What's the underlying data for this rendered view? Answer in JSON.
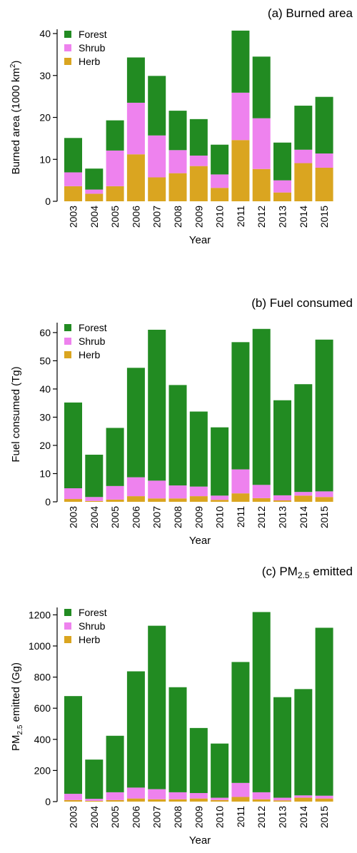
{
  "chart_data": [
    {
      "type": "bar",
      "stacked": true,
      "title": "(a) Burned area",
      "xlabel": "Year",
      "ylabel": "Burned area (1000 km²)",
      "ylabel_main": "Burned area (1000 km",
      "ylabel_sup": "2",
      "ylabel_tail": ")",
      "ylim": [
        0,
        40
      ],
      "yticks": [
        0,
        10,
        20,
        30,
        40
      ],
      "categories": [
        "2003",
        "2004",
        "2005",
        "2006",
        "2007",
        "2008",
        "2009",
        "2010",
        "2011",
        "2012",
        "2013",
        "2014",
        "2015"
      ],
      "series": [
        {
          "name": "Herb",
          "color": "#DAA520",
          "values": [
            3.6,
            1.8,
            3.6,
            11.2,
            5.7,
            6.7,
            8.4,
            3.2,
            14.6,
            7.7,
            2.1,
            9.1,
            8.0
          ]
        },
        {
          "name": "Shrub",
          "color": "#EE82EE",
          "values": [
            3.3,
            1.0,
            8.5,
            12.3,
            10.0,
            5.5,
            2.5,
            3.2,
            11.3,
            12.1,
            2.9,
            3.2,
            3.4
          ]
        },
        {
          "name": "Forest",
          "color": "#228B22",
          "values": [
            8.2,
            5.0,
            7.2,
            10.8,
            14.2,
            9.4,
            8.7,
            7.1,
            14.8,
            14.7,
            9.0,
            10.5,
            13.5
          ]
        }
      ],
      "legend": [
        "Forest",
        "Shrub",
        "Herb"
      ],
      "legend_position": "top-left",
      "grid": false
    },
    {
      "type": "bar",
      "stacked": true,
      "title": "(b) Fuel consumed",
      "xlabel": "Year",
      "ylabel": "Fuel consumed (Tg)",
      "ylim": [
        0,
        62
      ],
      "yticks": [
        0,
        10,
        20,
        30,
        40,
        50,
        60
      ],
      "categories": [
        "2003",
        "2004",
        "2005",
        "2006",
        "2007",
        "2008",
        "2009",
        "2010",
        "2011",
        "2012",
        "2013",
        "2014",
        "2015"
      ],
      "series": [
        {
          "name": "Herb",
          "color": "#DAA520",
          "values": [
            1.0,
            0.3,
            0.8,
            2.0,
            1.2,
            1.2,
            2.0,
            0.7,
            3.0,
            1.3,
            0.5,
            2.2,
            1.7
          ]
        },
        {
          "name": "Shrub",
          "color": "#EE82EE",
          "values": [
            3.8,
            1.4,
            4.8,
            6.7,
            6.3,
            4.6,
            3.4,
            1.5,
            8.5,
            4.7,
            1.8,
            1.3,
            2.0
          ]
        },
        {
          "name": "Forest",
          "color": "#228B22",
          "values": [
            30.4,
            15.0,
            20.6,
            38.8,
            53.5,
            35.6,
            26.6,
            24.2,
            45.1,
            55.3,
            33.7,
            38.2,
            53.8
          ]
        }
      ],
      "legend": [
        "Forest",
        "Shrub",
        "Herb"
      ],
      "legend_position": "top-left",
      "grid": false
    },
    {
      "type": "bar",
      "stacked": true,
      "title": "(c) PM2.5 emitted",
      "title_main": "(c) PM",
      "title_sub": "2.5",
      "title_tail": " emitted",
      "xlabel": "Year",
      "ylabel": "PM2.5 emitted (Gg)",
      "ylabel_main": "PM",
      "ylabel_sub": "2.5",
      "ylabel_tail": " emitted (Gg)",
      "ylim": [
        0,
        1220
      ],
      "yticks": [
        0,
        200,
        400,
        600,
        800,
        1000,
        1200
      ],
      "categories": [
        "2003",
        "2004",
        "2005",
        "2006",
        "2007",
        "2008",
        "2009",
        "2010",
        "2011",
        "2012",
        "2013",
        "2014",
        "2015"
      ],
      "series": [
        {
          "name": "Herb",
          "color": "#DAA520",
          "values": [
            10,
            5,
            10,
            20,
            15,
            15,
            20,
            10,
            30,
            15,
            8,
            25,
            20
          ]
        },
        {
          "name": "Shrub",
          "color": "#EE82EE",
          "values": [
            40,
            13,
            50,
            70,
            65,
            45,
            35,
            15,
            90,
            45,
            17,
            15,
            18
          ]
        },
        {
          "name": "Forest",
          "color": "#228B22",
          "values": [
            628,
            252,
            363,
            747,
            1050,
            675,
            418,
            348,
            777,
            1158,
            646,
            683,
            1079
          ]
        }
      ],
      "legend": [
        "Forest",
        "Shrub",
        "Herb"
      ],
      "legend_position": "top-left",
      "grid": false
    }
  ]
}
